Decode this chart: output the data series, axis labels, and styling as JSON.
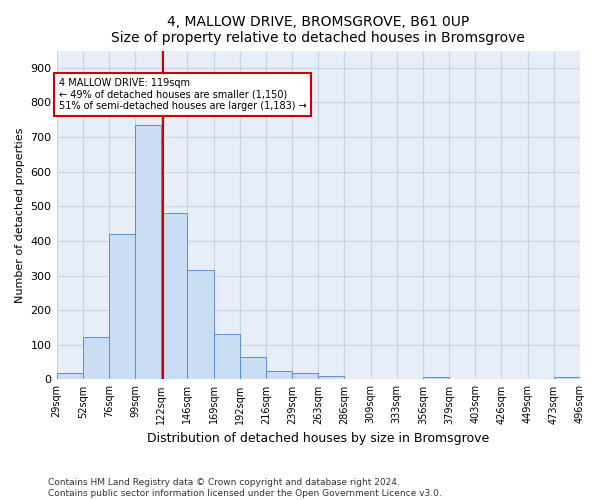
{
  "title": "4, MALLOW DRIVE, BROMSGROVE, B61 0UP",
  "subtitle": "Size of property relative to detached houses in Bromsgrove",
  "xlabel": "Distribution of detached houses by size in Bromsgrove",
  "ylabel": "Number of detached properties",
  "bar_color": "#c9ddf5",
  "bar_edge_color": "#5b8fd4",
  "bar_heights": [
    20,
    122,
    420,
    735,
    480,
    315,
    132,
    65,
    25,
    20,
    10,
    0,
    0,
    0,
    8,
    0,
    0,
    0,
    0,
    8
  ],
  "tick_labels": [
    "29sqm",
    "52sqm",
    "76sqm",
    "99sqm",
    "122sqm",
    "146sqm",
    "169sqm",
    "192sqm",
    "216sqm",
    "239sqm",
    "263sqm",
    "286sqm",
    "309sqm",
    "333sqm",
    "356sqm",
    "379sqm",
    "403sqm",
    "426sqm",
    "449sqm",
    "473sqm",
    "496sqm"
  ],
  "n_bins": 20,
  "property_line_x": 4.08,
  "annotation_text": "4 MALLOW DRIVE: 119sqm\n← 49% of detached houses are smaller (1,150)\n51% of semi-detached houses are larger (1,183) →",
  "annotation_box_color": "#ffffff",
  "annotation_box_edge": "#cc0000",
  "vline_color": "#cc0000",
  "ylim": [
    0,
    950
  ],
  "yticks": [
    0,
    100,
    200,
    300,
    400,
    500,
    600,
    700,
    800,
    900
  ],
  "grid_color": "#c8d4e8",
  "bg_color": "#e8eef8",
  "footer": "Contains HM Land Registry data © Crown copyright and database right 2024.\nContains public sector information licensed under the Open Government Licence v3.0."
}
